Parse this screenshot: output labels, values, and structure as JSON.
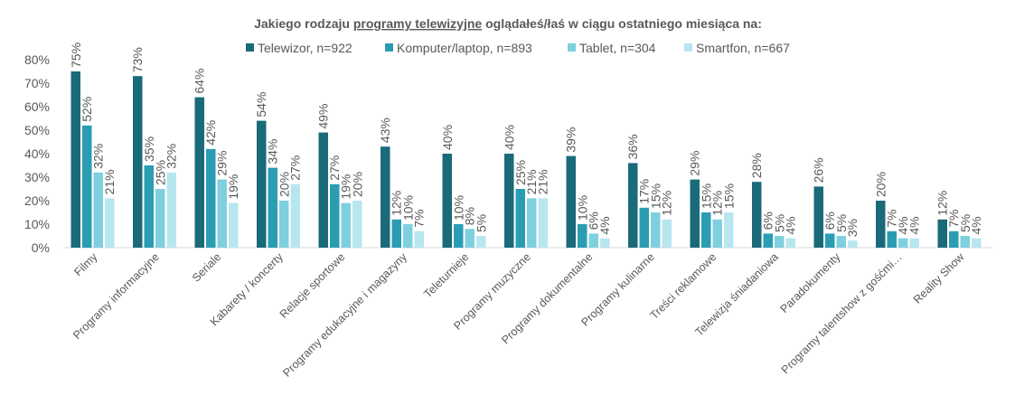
{
  "chart_data": {
    "type": "bar",
    "title_parts": [
      "Jakiego rodzaju ",
      "programy telewizyjne",
      " oglądałeś/łaś w ciągu ostatniego miesiąca na:"
    ],
    "xlabel": "",
    "ylabel": "",
    "ylim": [
      0,
      80
    ],
    "yticks": [
      "0%",
      "10%",
      "20%",
      "30%",
      "40%",
      "50%",
      "60%",
      "70%",
      "80%"
    ],
    "grid": false,
    "legend_position": "top",
    "categories": [
      "Filmy",
      "Programy informacyjne",
      "Seriale",
      "Kabarety / koncerty",
      "Relacje sportowe",
      "Programy edukacyjne i magazyny",
      "Teleturnieje",
      "Programy muzyczne",
      "Programy dokumentalne",
      "Programy kulinarne",
      "Treści reklamowe",
      "Telewizja śniadaniowa",
      "Paradokumenty",
      "Programy talentshow z gośćmi…",
      "Reality Show"
    ],
    "series": [
      {
        "name": "Telewizor, n=922",
        "color": "#1a6a7a",
        "values": [
          75,
          73,
          64,
          54,
          49,
          43,
          40,
          40,
          39,
          36,
          29,
          28,
          26,
          20,
          12
        ],
        "labels": [
          "75%",
          "73%",
          "64%",
          "54%",
          "49%",
          "43%",
          "40%",
          "40%",
          "39%",
          "36%",
          "29%",
          "28%",
          "26%",
          "20%",
          "12%"
        ]
      },
      {
        "name": "Komputer/laptop, n=893",
        "color": "#2a9db3",
        "values": [
          52,
          35,
          42,
          34,
          27,
          12,
          10,
          25,
          10,
          17,
          15,
          6,
          6,
          7,
          7
        ],
        "labels": [
          "52%",
          "35%",
          "42%",
          "34%",
          "27%",
          "12%",
          "10%",
          "25%",
          "10%",
          "17%",
          "15%",
          "6%",
          "6%",
          "7%",
          "7%"
        ]
      },
      {
        "name": "Tablet, n=304",
        "color": "#7fd0de",
        "values": [
          32,
          25,
          29,
          20,
          19,
          10,
          8,
          21,
          6,
          15,
          12,
          5,
          5,
          4,
          5
        ],
        "labels": [
          "32%",
          "25%",
          "29%",
          "20%",
          "19%",
          "10%",
          "8%",
          "21%",
          "6%",
          "15%",
          "12%",
          "5%",
          "5%",
          "4%",
          "5%"
        ]
      },
      {
        "name": "Smartfon, n=667",
        "color": "#b8e6ef",
        "values": [
          21,
          32,
          19,
          27,
          20,
          7,
          5,
          21,
          4,
          12,
          15,
          4,
          3,
          4,
          4
        ],
        "labels": [
          "21%",
          "32%",
          "19%",
          "27%",
          "20%",
          "7%",
          "5%",
          "21%",
          "4%",
          "12%",
          "15%",
          "4%",
          "3%",
          "4%",
          "4%"
        ]
      }
    ]
  }
}
